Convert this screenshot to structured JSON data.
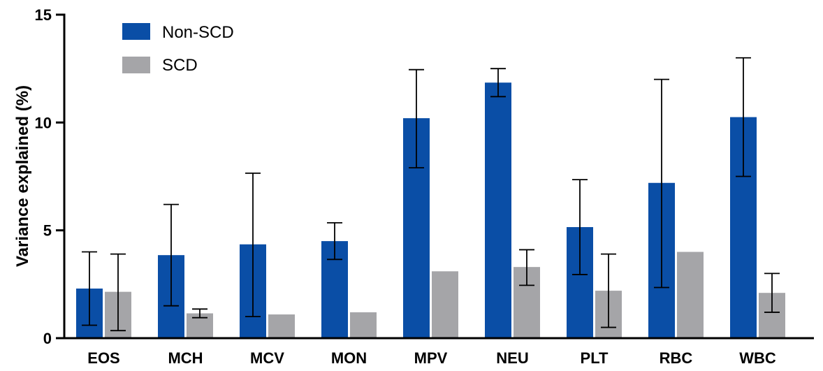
{
  "chart_data": {
    "type": "bar",
    "title": "",
    "xlabel": "",
    "ylabel": "Variance explained (%)",
    "ylim": [
      0,
      15
    ],
    "yticks": [
      "0",
      "5",
      "10",
      "15"
    ],
    "grid": false,
    "legend_position": "top-left",
    "categories": [
      "EOS",
      "MCH",
      "MCV",
      "MON",
      "MPV",
      "NEU",
      "PLT",
      "RBC",
      "WBC"
    ],
    "series": [
      {
        "name": "Non-SCD",
        "color": "#0a4ea6",
        "values": [
          2.3,
          3.85,
          4.35,
          4.5,
          10.2,
          11.85,
          5.15,
          7.2,
          10.25
        ],
        "error_low": [
          0.6,
          1.5,
          1.0,
          3.65,
          7.9,
          11.2,
          2.95,
          2.35,
          7.5
        ],
        "error_high": [
          4.0,
          6.2,
          7.65,
          5.35,
          12.45,
          12.5,
          7.35,
          12.0,
          13.0
        ]
      },
      {
        "name": "SCD",
        "color": "#a5a5a8",
        "values": [
          2.15,
          1.15,
          1.1,
          1.2,
          3.1,
          3.3,
          2.2,
          4.0,
          2.1
        ],
        "error_low": [
          0.35,
          0.95,
          null,
          null,
          null,
          2.45,
          0.5,
          null,
          1.2
        ],
        "error_high": [
          3.9,
          1.35,
          null,
          null,
          null,
          4.1,
          3.9,
          null,
          3.0
        ]
      }
    ]
  }
}
